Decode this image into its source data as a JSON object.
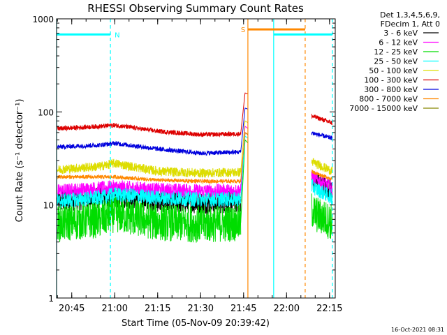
{
  "chart_data": {
    "type": "line",
    "title": "RHESSI Observing Summary Count Rates",
    "xlabel": "Start Time (05-Nov-09 20:39:42)",
    "ylabel": "Count Rate (s⁻¹ detector⁻¹)",
    "y_scale": "log",
    "ylim": [
      1,
      1000
    ],
    "xlim": [
      "20:39:42",
      "22:17:00"
    ],
    "x_ticks": [
      "20:45",
      "21:00",
      "21:15",
      "21:30",
      "21:45",
      "22:00",
      "22:15"
    ],
    "y_ticks": [
      "1",
      "10",
      "100",
      "1000"
    ],
    "legend_header": [
      "Det 1,3,4,5,6,9,",
      "FDecim 1, Att 0"
    ],
    "legend_position": "top-right outside",
    "series": [
      {
        "name": "3 - 6 keV",
        "color": "#000000",
        "x": [
          "20:40",
          "20:55",
          "21:00",
          "21:15",
          "21:30",
          "21:44",
          "21:45:30",
          "22:10",
          "22:16"
        ],
        "values": [
          11,
          12,
          12.5,
          11,
          10.5,
          10.8,
          60,
          18,
          14
        ],
        "noise": 0.12
      },
      {
        "name": "6 - 12 keV",
        "color": "#ff00ff",
        "x": [
          "20:40",
          "20:55",
          "21:00",
          "21:15",
          "21:30",
          "21:44",
          "21:45:30",
          "22:10",
          "22:16"
        ],
        "values": [
          14,
          15,
          15.5,
          14.5,
          14,
          14.2,
          70,
          19,
          15
        ],
        "noise": 0.08
      },
      {
        "name": "12 - 25 keV",
        "color": "#00dd00",
        "x": [
          "20:40",
          "20:55",
          "21:00",
          "21:15",
          "21:30",
          "21:44",
          "21:45:30",
          "22:10",
          "22:16"
        ],
        "values": [
          6.3,
          7,
          8,
          6.5,
          6.2,
          6.4,
          50,
          8,
          6.5
        ],
        "noise": 0.2
      },
      {
        "name": "25 - 50 keV",
        "color": "#00ffff",
        "x": [
          "20:40",
          "20:55",
          "21:00",
          "21:15",
          "21:30",
          "21:44",
          "21:45:30",
          "22:10",
          "22:16"
        ],
        "values": [
          11,
          12,
          13,
          12,
          11.5,
          11.5,
          55,
          15,
          12
        ],
        "noise": 0.08
      },
      {
        "name": "50 - 100 keV",
        "color": "#dddd00",
        "x": [
          "20:40",
          "20:55",
          "21:00",
          "21:15",
          "21:30",
          "21:44",
          "21:45:30",
          "22:10",
          "22:16"
        ],
        "values": [
          24,
          26,
          28,
          23,
          22,
          22.5,
          80,
          28,
          23
        ],
        "noise": 0.05
      },
      {
        "name": "100 - 300 keV",
        "color": "#dd0000",
        "x": [
          "20:40",
          "20:55",
          "21:00",
          "21:15",
          "21:30",
          "21:44",
          "21:45:30",
          "22:10",
          "22:16"
        ],
        "values": [
          66,
          70,
          72,
          62,
          57,
          58,
          160,
          88,
          76
        ],
        "noise": 0.025
      },
      {
        "name": "300 - 800 keV",
        "color": "#0000dd",
        "x": [
          "20:40",
          "20:55",
          "21:00",
          "21:15",
          "21:30",
          "21:44",
          "21:45:30",
          "22:10",
          "22:16"
        ],
        "values": [
          42,
          44,
          46,
          40,
          36,
          37,
          110,
          58,
          52
        ],
        "noise": 0.025
      },
      {
        "name": "800 - 7000 keV",
        "color": "#ff8800",
        "x": [
          "20:40",
          "20:55",
          "21:00",
          "21:15",
          "21:30",
          "21:44",
          "21:45:30",
          "22:10",
          "22:16"
        ],
        "values": [
          20,
          20,
          20,
          18.5,
          18,
          18,
          60,
          22,
          19
        ],
        "noise": 0.02
      },
      {
        "name": "7000 - 15000 keV",
        "color": "#888800",
        "x": [],
        "values": [],
        "noise": 0
      }
    ],
    "markers": [
      {
        "label": "N",
        "color": "#00ffff",
        "x_start": "20:39:42",
        "x_end": "20:58:30",
        "level": 680
      },
      {
        "label": "S",
        "color": "#ff8800",
        "x_start": "21:46:30",
        "x_end": "22:06:30",
        "level": 770
      },
      {
        "label": "",
        "color": "#00ffff",
        "x_start": "21:55:30",
        "x_end": "22:16:00",
        "level": 680
      }
    ],
    "vlines": [
      {
        "x": "20:39:42",
        "color": "#00ffff",
        "style": "solid"
      },
      {
        "x": "20:58:30",
        "color": "#00ffff",
        "style": "dashed"
      },
      {
        "x": "21:46:30",
        "color": "#ff8800",
        "style": "solid"
      },
      {
        "x": "21:55:30",
        "color": "#00ffff",
        "style": "solid"
      },
      {
        "x": "22:06:30",
        "color": "#ff8800",
        "style": "dashed"
      },
      {
        "x": "22:16:00",
        "color": "#00ffff",
        "style": "dashed"
      }
    ],
    "data_gap": [
      "21:46:30",
      "22:08:45"
    ]
  },
  "footer": {
    "timestamp": "16-Oct-2021 08:31"
  }
}
